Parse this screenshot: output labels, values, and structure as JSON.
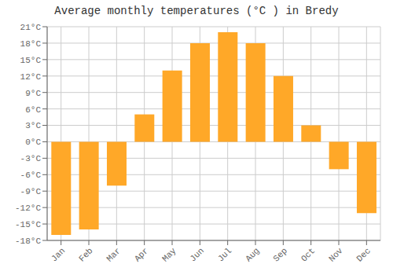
{
  "chart_data": {
    "type": "bar",
    "title": "Average monthly temperatures (°C ) in Bredy",
    "categories": [
      "Jan",
      "Feb",
      "Mar",
      "Apr",
      "May",
      "Jun",
      "Jul",
      "Aug",
      "Sep",
      "Oct",
      "Nov",
      "Dec"
    ],
    "values": [
      -17,
      -16,
      -8,
      5,
      13,
      18,
      20,
      18,
      12,
      3,
      -5,
      -13
    ],
    "color": "#FFA828",
    "ylim": [
      -18,
      21
    ],
    "yticks": [
      {
        "value": -18,
        "label": "-18°C"
      },
      {
        "value": -15,
        "label": "-15°C"
      },
      {
        "value": -12,
        "label": "-12°C"
      },
      {
        "value": -9,
        "label": "-9°C"
      },
      {
        "value": -6,
        "label": "-6°C"
      },
      {
        "value": -3,
        "label": "-3°C"
      },
      {
        "value": 0,
        "label": "0°C"
      },
      {
        "value": 3,
        "label": "3°C"
      },
      {
        "value": 6,
        "label": "6°C"
      },
      {
        "value": 9,
        "label": "9°C"
      },
      {
        "value": 12,
        "label": "12°C"
      },
      {
        "value": 15,
        "label": "15°C"
      },
      {
        "value": 18,
        "label": "18°C"
      },
      {
        "value": 21,
        "label": "21°C"
      }
    ],
    "grid": true
  }
}
